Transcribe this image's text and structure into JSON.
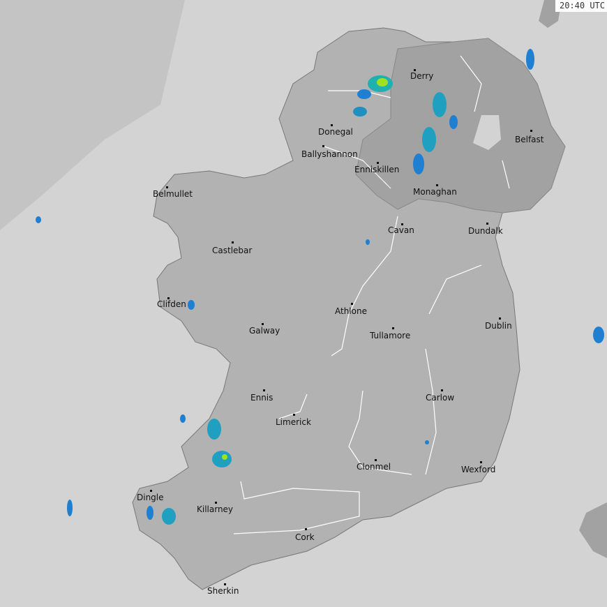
{
  "timestamp": "20:40 UTC",
  "colors": {
    "sea": "#d3d3d3",
    "outer_sea": "#c4c4c4",
    "land": "#b2b2b2",
    "northern_ireland": "#a2a2a2",
    "river": "#ffffff",
    "rain_light": "#1f7fd0",
    "rain_moderate": "#20b0b0",
    "rain_heavy": "#a0e020"
  },
  "cities": [
    {
      "name": "Derry"
    },
    {
      "name": "Donegal"
    },
    {
      "name": "Ballyshannon"
    },
    {
      "name": "Enniskillen"
    },
    {
      "name": "Belfast"
    },
    {
      "name": "Monaghan"
    },
    {
      "name": "Belmullet"
    },
    {
      "name": "Cavan"
    },
    {
      "name": "Dundalk"
    },
    {
      "name": "Castlebar"
    },
    {
      "name": "Clifden"
    },
    {
      "name": "Athlone"
    },
    {
      "name": "Galway"
    },
    {
      "name": "Tullamore"
    },
    {
      "name": "Dublin"
    },
    {
      "name": "Ennis"
    },
    {
      "name": "Carlow"
    },
    {
      "name": "Limerick"
    },
    {
      "name": "Clonmel"
    },
    {
      "name": "Wexford"
    },
    {
      "name": "Dingle"
    },
    {
      "name": "Killarney"
    },
    {
      "name": "Cork"
    },
    {
      "name": "Sherkin"
    }
  ]
}
